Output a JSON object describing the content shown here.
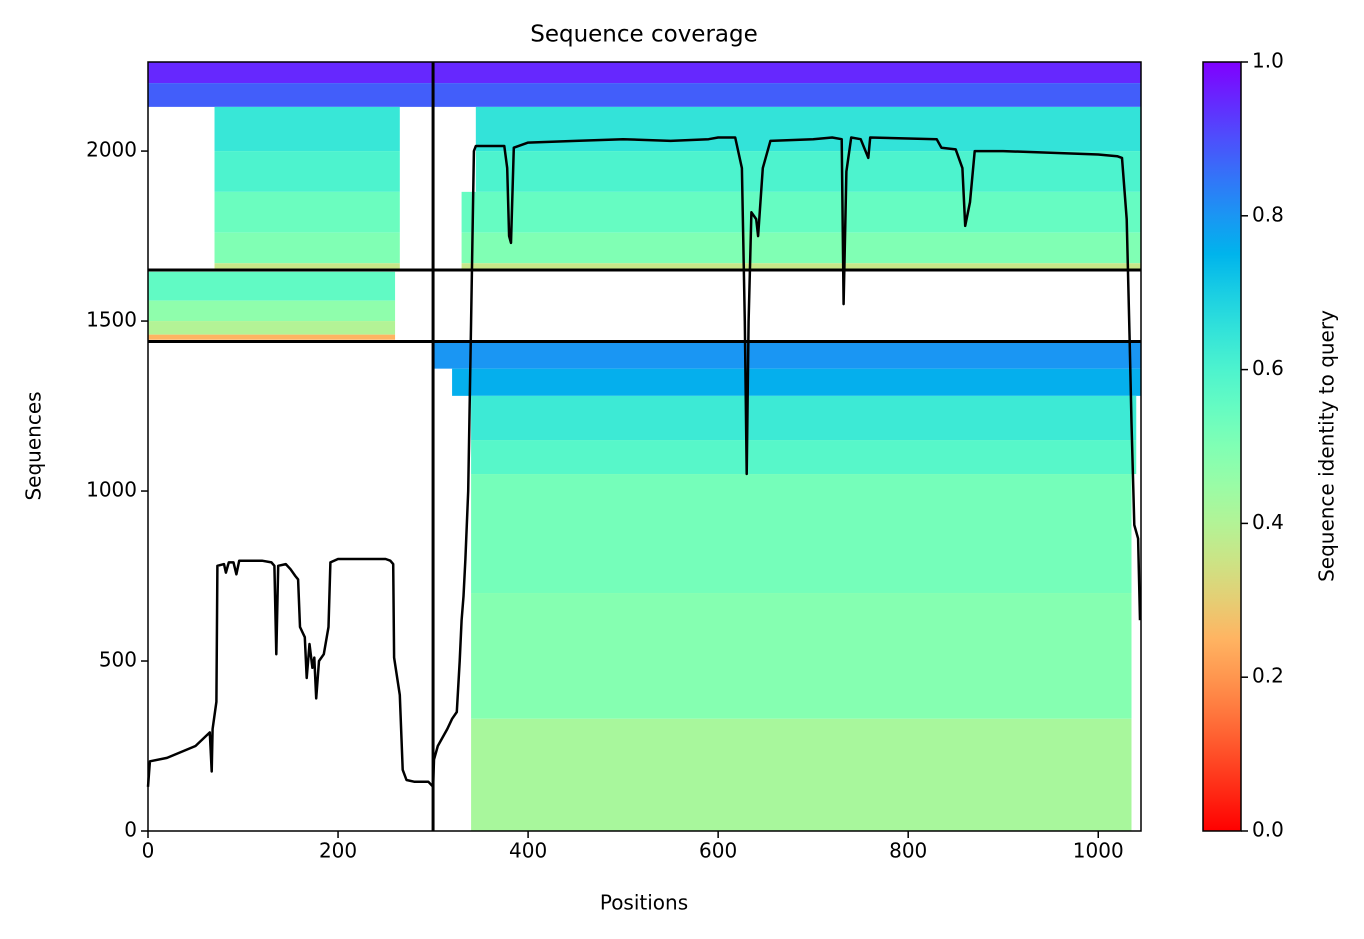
{
  "chart_data": {
    "type": "coverage",
    "title": "Sequence coverage",
    "x_label": "Positions",
    "y_label": "Sequences",
    "xlim": [
      0,
      1045
    ],
    "xticks": [
      0,
      200,
      400,
      600,
      800,
      1000
    ],
    "ylim": [
      0,
      2262
    ],
    "yticks": [
      0,
      500,
      1000,
      1500,
      2000
    ],
    "colormap": "rainbow_r",
    "colorbar": {
      "label": "Sequence identity to query",
      "lim": [
        0,
        1
      ],
      "ticks": [
        {
          "value": 0,
          "label": "0.0"
        },
        0.2,
        0.4,
        0.6,
        0.8,
        {
          "value": 1,
          "label": "1.0"
        }
      ]
    },
    "bands": [
      {
        "x": [
          0,
          300
        ],
        "y": [
          2200,
          2262
        ],
        "identity": 0.95
      },
      {
        "x": [
          0,
          300
        ],
        "y": [
          2130,
          2200
        ],
        "identity": 0.88
      },
      {
        "x": [
          70,
          265
        ],
        "y": [
          2000,
          2130
        ],
        "identity": 0.64
      },
      {
        "x": [
          70,
          265
        ],
        "y": [
          1880,
          2000
        ],
        "identity": 0.6
      },
      {
        "x": [
          70,
          265
        ],
        "y": [
          1760,
          1880
        ],
        "identity": 0.54
      },
      {
        "x": [
          70,
          265
        ],
        "y": [
          1670,
          1760
        ],
        "identity": 0.5
      },
      {
        "x": [
          70,
          265
        ],
        "y": [
          1650,
          1670
        ],
        "identity": 0.36
      },
      {
        "x": [
          0,
          260
        ],
        "y": [
          1560,
          1645
        ],
        "identity": 0.56
      },
      {
        "x": [
          0,
          260
        ],
        "y": [
          1500,
          1560
        ],
        "identity": 0.47
      },
      {
        "x": [
          0,
          260
        ],
        "y": [
          1460,
          1500
        ],
        "identity": 0.4
      },
      {
        "x": [
          0,
          260
        ],
        "y": [
          1445,
          1460
        ],
        "identity": 0.25
      },
      {
        "x": [
          300,
          1045
        ],
        "y": [
          2200,
          2262
        ],
        "identity": 0.95
      },
      {
        "x": [
          300,
          1045
        ],
        "y": [
          2130,
          2200
        ],
        "identity": 0.88
      },
      {
        "x": [
          345,
          1045
        ],
        "y": [
          2000,
          2130
        ],
        "identity": 0.65
      },
      {
        "x": [
          345,
          1045
        ],
        "y": [
          1880,
          2000
        ],
        "identity": 0.6
      },
      {
        "x": [
          330,
          1045
        ],
        "y": [
          1760,
          1880
        ],
        "identity": 0.55
      },
      {
        "x": [
          330,
          1045
        ],
        "y": [
          1670,
          1760
        ],
        "identity": 0.5
      },
      {
        "x": [
          330,
          1045
        ],
        "y": [
          1650,
          1670
        ],
        "identity": 0.36
      },
      {
        "x": [
          300,
          1045
        ],
        "y": [
          1360,
          1440
        ],
        "identity": 0.8
      },
      {
        "x": [
          320,
          1045
        ],
        "y": [
          1280,
          1360
        ],
        "identity": 0.76
      },
      {
        "x": [
          340,
          1040
        ],
        "y": [
          1150,
          1280
        ],
        "identity": 0.63
      },
      {
        "x": [
          340,
          1040
        ],
        "y": [
          1050,
          1150
        ],
        "identity": 0.58
      },
      {
        "x": [
          340,
          1035
        ],
        "y": [
          700,
          1050
        ],
        "identity": 0.52
      },
      {
        "x": [
          340,
          1035
        ],
        "y": [
          330,
          700
        ],
        "identity": 0.49
      },
      {
        "x": [
          340,
          1035
        ],
        "y": [
          0,
          330
        ],
        "identity": 0.42
      }
    ],
    "boundaries": {
      "x": [
        300
      ],
      "y": [
        1440,
        1650
      ]
    },
    "coverage": {
      "x": [
        0,
        2,
        20,
        50,
        65,
        67,
        68,
        72,
        73,
        80,
        82,
        85,
        90,
        93,
        96,
        120,
        130,
        133,
        135,
        137,
        145,
        150,
        155,
        158,
        160,
        165,
        167,
        170,
        173,
        175,
        177,
        180,
        185,
        190,
        192,
        200,
        250,
        255,
        258,
        259,
        265,
        268,
        272,
        280,
        295,
        300,
        301,
        305,
        315,
        320,
        325,
        328,
        330,
        332,
        334,
        337,
        340,
        343,
        345,
        375,
        378,
        380,
        382,
        385,
        400,
        450,
        500,
        550,
        590,
        600,
        618,
        625,
        628,
        630,
        632,
        635,
        640,
        642,
        647,
        655,
        700,
        720,
        730,
        732,
        735,
        740,
        750,
        758,
        760,
        830,
        835,
        850,
        857,
        860,
        865,
        870,
        900,
        950,
        1000,
        1020,
        1025,
        1030,
        1033,
        1035,
        1038,
        1042,
        1044
      ],
      "y": [
        130,
        205,
        215,
        250,
        290,
        175,
        300,
        380,
        780,
        785,
        760,
        790,
        790,
        755,
        795,
        795,
        790,
        780,
        520,
        780,
        785,
        770,
        750,
        740,
        600,
        570,
        450,
        550,
        480,
        510,
        390,
        500,
        520,
        600,
        790,
        800,
        800,
        795,
        785,
        510,
        400,
        180,
        150,
        145,
        145,
        130,
        210,
        250,
        300,
        330,
        350,
        500,
        620,
        690,
        800,
        1000,
        1500,
        2000,
        2015,
        2015,
        1950,
        1750,
        1730,
        2010,
        2025,
        2030,
        2035,
        2030,
        2035,
        2040,
        2040,
        1950,
        1500,
        1050,
        1500,
        1820,
        1800,
        1750,
        1950,
        2030,
        2035,
        2040,
        2035,
        1550,
        1940,
        2040,
        2035,
        1980,
        2040,
        2035,
        2010,
        2005,
        1950,
        1780,
        1850,
        2000,
        2000,
        1995,
        1990,
        1985,
        1980,
        1800,
        1450,
        1200,
        900,
        860,
        620
      ]
    }
  }
}
